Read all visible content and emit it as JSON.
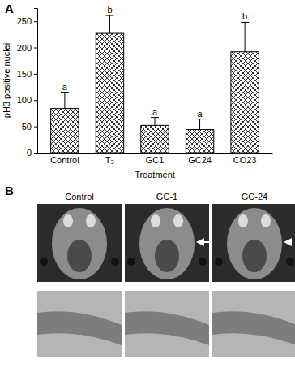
{
  "chart_data": {
    "type": "bar",
    "panel_label": "A",
    "x_label": "Treatment",
    "y_label": "pH3 positive nuclei",
    "categories": [
      "Control",
      "T₃",
      "GC1",
      "GC24",
      "CO23"
    ],
    "values": [
      84,
      227,
      52,
      44,
      192
    ],
    "errors": [
      31,
      34,
      15,
      20,
      56
    ],
    "annotations": [
      "a",
      "b",
      "a",
      "a",
      "b"
    ],
    "color": "#000000",
    "ylim": [
      0,
      275
    ],
    "yticks": [
      0,
      50,
      100,
      150,
      200,
      250
    ]
  },
  "panel_b": {
    "panel_label": "B",
    "images": [
      "Control",
      "GC-1",
      "GC-24"
    ]
  }
}
